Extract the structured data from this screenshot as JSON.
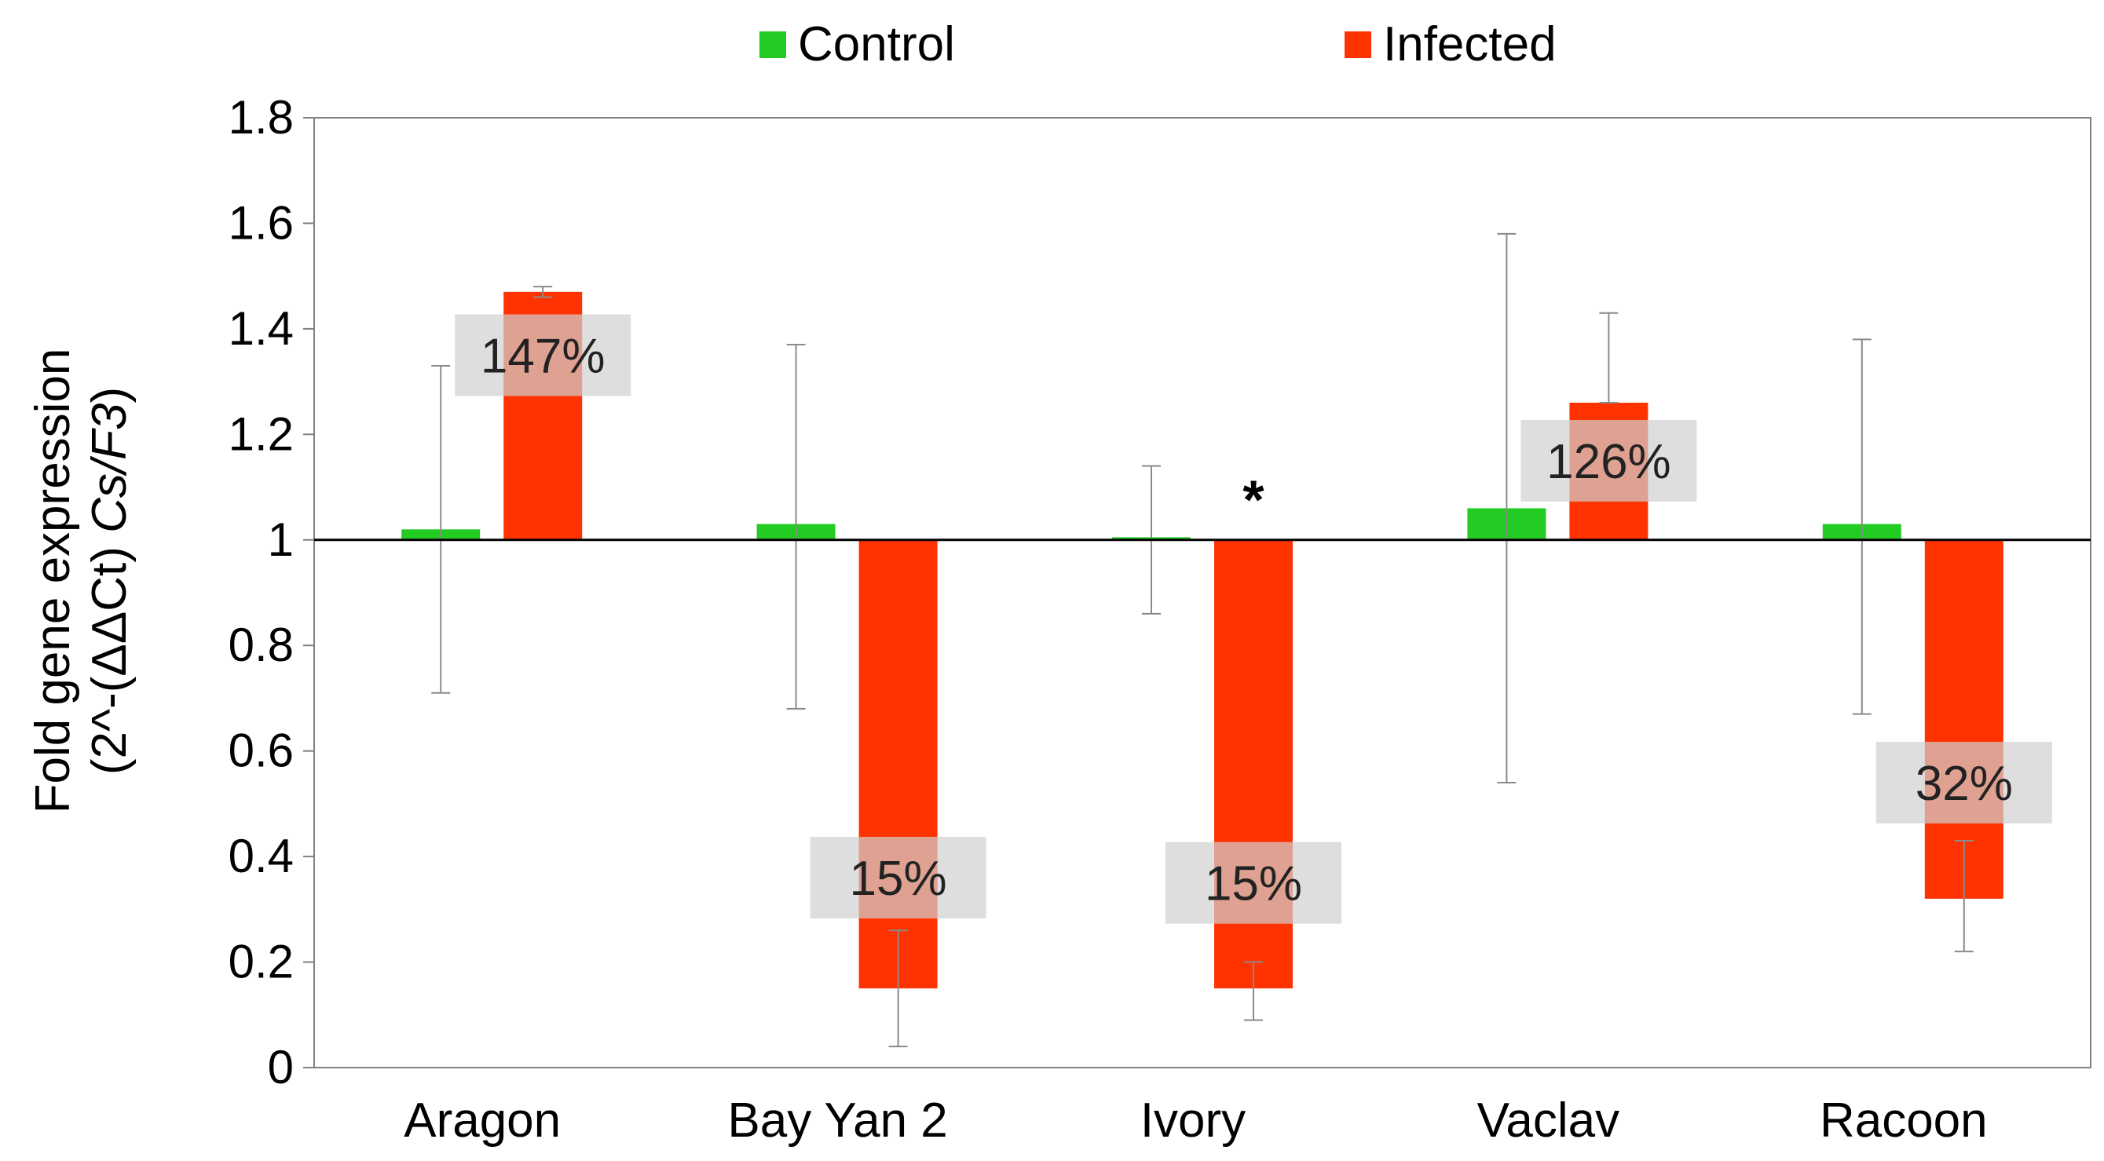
{
  "chart_data": {
    "type": "bar",
    "categories": [
      "Aragon",
      "Bay Yan 2",
      "Ivory",
      "Vaclav",
      "Racoon"
    ],
    "baseline": 1,
    "ylim": [
      0,
      1.8
    ],
    "yticks": [
      "0",
      "0.2",
      "0.4",
      "0.6",
      "0.8",
      "1",
      "1.2",
      "1.4",
      "1.6",
      "1.8"
    ],
    "ylabel_line1": "Fold gene expression",
    "ylabel_line2_pre": "(2^-(ΔΔCt) ",
    "ylabel_line2_italic": "Cs/F3",
    "ylabel_line2_post": ")",
    "grid": false,
    "legend_position": "top",
    "series": [
      {
        "name": "Control",
        "color": "#22cc22",
        "values": [
          1.02,
          1.03,
          1.005,
          1.06,
          1.03
        ],
        "err_low": [
          0.71,
          0.68,
          0.86,
          0.54,
          0.67
        ],
        "err_high": [
          1.33,
          1.37,
          1.14,
          1.58,
          1.38
        ]
      },
      {
        "name": "Infected",
        "color": "#ff3300",
        "values": [
          1.47,
          0.15,
          0.15,
          1.26,
          0.32
        ],
        "err_low": [
          1.46,
          0.04,
          0.09,
          1.26,
          0.22
        ],
        "err_high": [
          1.48,
          0.26,
          0.2,
          1.43,
          0.43
        ]
      }
    ],
    "annotations": [
      {
        "category": 0,
        "text": "147%",
        "y": 1.35
      },
      {
        "category": 1,
        "text": "15%",
        "y": 0.36
      },
      {
        "category": 2,
        "text": "15%",
        "y": 0.35
      },
      {
        "category": 3,
        "text": "126%",
        "y": 1.15
      },
      {
        "category": 4,
        "text": "32%",
        "y": 0.54
      }
    ],
    "significance": [
      {
        "category": 2,
        "text": "*",
        "y": 1.1
      }
    ]
  }
}
